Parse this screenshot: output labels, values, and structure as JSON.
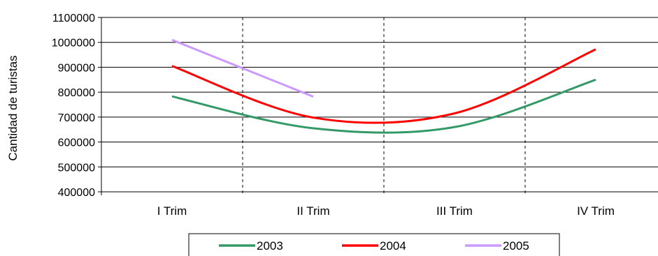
{
  "chart_data": {
    "type": "line",
    "title": "",
    "xlabel": "",
    "ylabel": "Cantidad de turistas",
    "categories": [
      "I Trim",
      "II Trim",
      "III Trim",
      "IV Trim"
    ],
    "ylim": [
      400000,
      1100000
    ],
    "yticks": [
      400000,
      500000,
      600000,
      700000,
      800000,
      900000,
      1000000,
      1100000
    ],
    "ytick_labels": [
      "400000",
      "500000",
      "600000",
      "700000",
      "800000",
      "900000",
      "1000000",
      "1100000"
    ],
    "grid": "horizontal",
    "legend_position": "bottom",
    "smooth": true,
    "series": [
      {
        "name": "2003",
        "color": "#339966",
        "values": [
          783000,
          655000,
          660000,
          850000
        ]
      },
      {
        "name": "2004",
        "color": "#ff0000",
        "values": [
          905000,
          698000,
          715000,
          972000
        ]
      },
      {
        "name": "2005",
        "color": "#cc99ff",
        "values": [
          1010000,
          782000,
          null,
          null
        ]
      }
    ]
  }
}
